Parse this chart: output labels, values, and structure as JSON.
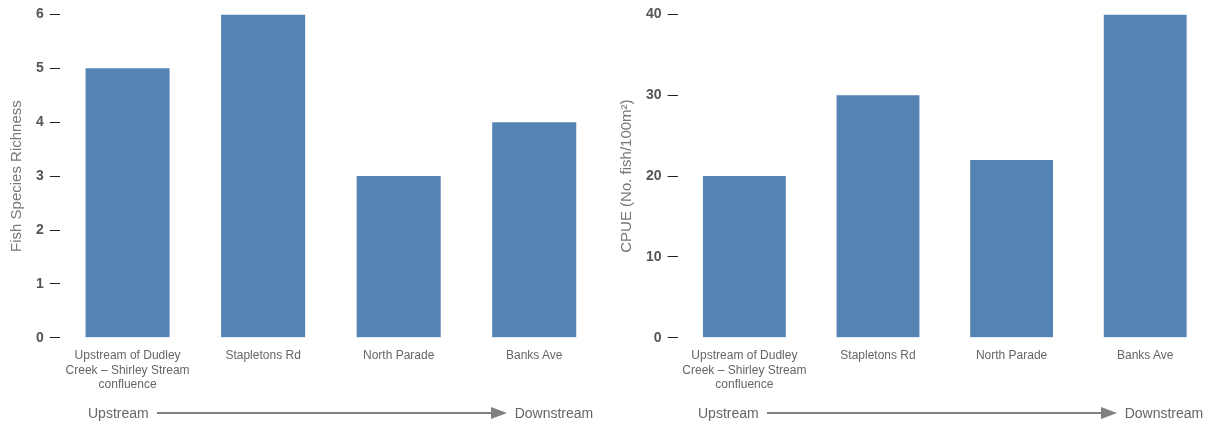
{
  "chart_data": [
    {
      "type": "bar",
      "categories": [
        "Upstream of Dudley Creek – Shirley Stream confluence",
        "Stapletons Rd",
        "North Parade",
        "Banks Ave"
      ],
      "values": [
        5,
        6,
        3,
        4
      ],
      "color": "#5584b4",
      "ylabel": "Fish Species Richness",
      "ylim": [
        0,
        6
      ],
      "yticks": [
        0,
        1,
        2,
        3,
        4,
        5,
        6
      ],
      "grid": false,
      "legend": false,
      "annotations": [
        "Upstream",
        "Downstream"
      ]
    },
    {
      "type": "bar",
      "categories": [
        "Upstream of Dudley Creek – Shirley Stream confluence",
        "Stapletons Rd",
        "North Parade",
        "Banks Ave"
      ],
      "values": [
        20,
        30,
        22,
        40
      ],
      "color": "#5584b4",
      "ylabel": "CPUE (No. fish/100m²)",
      "ylim": [
        0,
        40
      ],
      "yticks": [
        0,
        10,
        20,
        30,
        40
      ],
      "grid": false,
      "legend": false,
      "annotations": [
        "Upstream",
        "Downstream"
      ]
    }
  ]
}
